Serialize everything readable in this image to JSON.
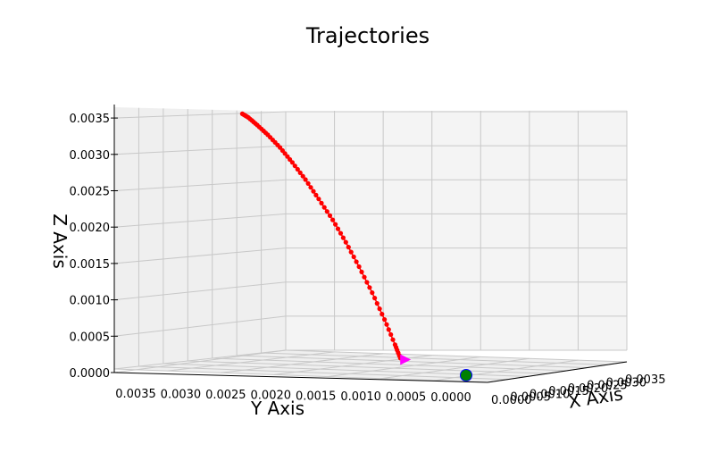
{
  "chart_data": {
    "type": "line3d",
    "title": "Trajectories",
    "xlabel": "X Axis",
    "ylabel": "Y Axis",
    "zlabel": "Z Axis",
    "grid": true,
    "z_ticks": [
      "0.0000",
      "0.0005",
      "0.0010",
      "0.0015",
      "0.0020",
      "0.0025",
      "0.0030",
      "0.0035"
    ],
    "y_ticks": [
      "0.0035",
      "0.0030",
      "0.0025",
      "0.0020",
      "0.0015",
      "0.0010",
      "0.0005",
      "0.0000"
    ],
    "x_ticks": [
      "0.0000",
      "0.0005",
      "0.0010",
      "0.0015",
      "0.0020",
      "0.0025",
      "0.0030",
      "0.0035"
    ],
    "series": [
      {
        "color": "#ff0000",
        "marker": "circle",
        "points": [
          {
            "x": 0.0,
            "y": 0.00255,
            "z": 0.0035
          },
          {
            "x": 0.0,
            "y": 0.00248,
            "z": 0.00345
          },
          {
            "x": 0.0,
            "y": 0.00238,
            "z": 0.00335
          },
          {
            "x": 0.0,
            "y": 0.00226,
            "z": 0.00322
          },
          {
            "x": 0.0,
            "y": 0.00212,
            "z": 0.00305
          },
          {
            "x": 0.0,
            "y": 0.00198,
            "z": 0.00285
          },
          {
            "x": 0.0,
            "y": 0.00183,
            "z": 0.00262
          },
          {
            "x": 0.0,
            "y": 0.00168,
            "z": 0.00236
          },
          {
            "x": 0.0,
            "y": 0.00152,
            "z": 0.00208
          },
          {
            "x": 0.0,
            "y": 0.00137,
            "z": 0.00178
          },
          {
            "x": 0.0,
            "y": 0.00122,
            "z": 0.00145
          },
          {
            "x": 0.0,
            "y": 0.00107,
            "z": 0.0011
          },
          {
            "x": 0.0,
            "y": 0.00093,
            "z": 0.00074
          },
          {
            "x": 0.0,
            "y": 0.00081,
            "z": 0.0004
          },
          {
            "x": 0.0,
            "y": 0.00075,
            "z": 0.00022
          }
        ]
      }
    ],
    "markers": [
      {
        "shape": "triangle-right",
        "color": "#ff00ff",
        "x": 0.0,
        "y": 0.00072,
        "z": 0.0002
      },
      {
        "shape": "circle",
        "color": "#0000ff",
        "x": 0.0,
        "y": 0.0,
        "z": 0.0
      },
      {
        "shape": "circle",
        "color": "#008000",
        "x": 0.0,
        "y": 0.0,
        "z": 0.0
      }
    ]
  }
}
